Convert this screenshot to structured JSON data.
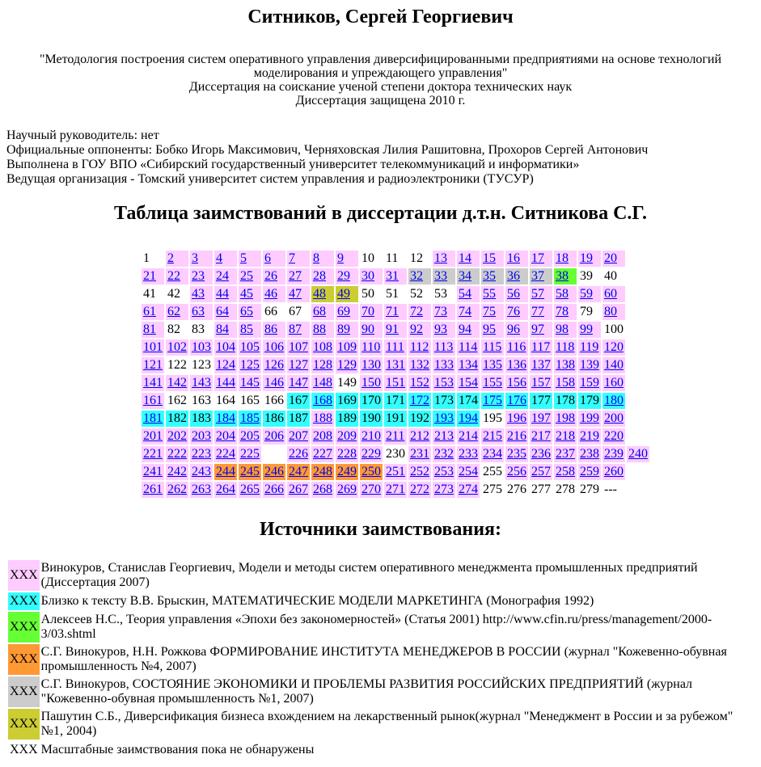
{
  "title": "Ситников, Сергей Георгиевич",
  "thesis": {
    "topic": "\"Методология построения систем оперативного управления диверсифицированными предприятиями на основе технологий моделирования и упреждающего управления\"",
    "degree": "Диссертация на соискание ученой степени доктора технических наук",
    "defended": "Диссертация защищена 2010 г."
  },
  "info": [
    "Научный руководитель: нет",
    "Официальные оппоненты: Бобко Игорь Максимович, Черняховская Лилия Рашитовна, Прохоров Сергей Антонович",
    "Выполнена в ГОУ ВПО «Сибирский государственный университет телекоммуникаций и информатики»",
    "Ведущая организация - Томский университет систем управления и радиоэлектроники (ТУСУР)"
  ],
  "table_title": "Таблица заимствований в диссертации д.т.н. Ситникова С.Г.",
  "colors": {
    "p": "#ffccff",
    "c": "#33ffff",
    "C": "#33ffff",
    "g": "#cccccc",
    "G": "#66ff33",
    "o": "#ff9933",
    "y": "#cccc33",
    "w": "#ffffff",
    "e": "#ffffff"
  },
  "linked_codes": [
    "p",
    "C",
    "g",
    "G",
    "o",
    "y"
  ],
  "rows": [
    "1:w 2:p 3:p 4:p 5:p 6:p 7:p 8:p 9:p 10:w 11:w 12:w 13:p 14:p 15:p 16:p 17:p 18:p 19:p 20:p",
    "21:p 22:p 23:p 24:p 25:p 26:p 27:p 28:p 29:p 30:p 31:p 32:g 33:g 34:g 35:g 36:g 37:g 38:G 39:w 40:w",
    "41:w 42:w 43:p 44:p 45:p 46:p 47:p 48:y 49:y 50:w 51:w 52:w 53:w 54:p 55:p 56:p 57:p 58:p 59:p 60:p",
    "61:p 62:p 63:p 64:p 65:p 66:w 67:w 68:p 69:p 70:p 71:p 72:p 73:p 74:p 75:p 76:p 77:p 78:p 79:w 80:p",
    "81:p 82:w 83:w 84:p 85:p 86:p 87:p 88:p 89:p 90:p 91:p 92:p 93:p 94:p 95:p 96:p 97:p 98:p 99:p 100:w",
    "101:p 102:p 103:p 104:p 105:p 106:p 107:p 108:p 109:p 110:p 111:p 112:p 113:p 114:p 115:p 116:p 117:p 118:p 119:p 120:p",
    "121:p 122:w 123:w 124:p 125:p 126:p 127:p 128:p 129:p 130:p 131:p 132:p 133:p 134:p 135:p 136:p 137:p 138:p 139:p 140:p",
    "141:p 142:p 143:p 144:p 145:p 146:p 147:p 148:p 149:w 150:p 151:p 152:p 153:p 154:p 155:p 156:p 157:p 158:p 159:p 160:p",
    "161:p 162:w 163:w 164:w 165:w 166:w 167:c 168:C 169:c 170:c 171:c 172:C 173:c 174:c 175:C 176:C 177:c 178:c 179:c 180:C",
    "181:C 182:c 183:c 184:C 185:C 186:c 187:c 188:p 189:c 190:c 191:c 192:c 193:C 194:C 195:w 196:p 197:p 198:p 199:p 200:p",
    "201:p 202:p 203:p 204:p 205:p 206:p 207:p 208:p 209:p 210:p 211:p 212:p 213:p 214:p 215:p 216:p 217:p 218:p 219:p 220:p",
    "221:p 222:p 223:p 224:p 225:p :e 226:p 227:p 228:p 229:p 230:w 231:p 232:p 233:p 234:p 235:p 236:p 237:p 238:p 239:p 240:p",
    "241:p 242:p 243:p 244:o 245:o 246:o 247:o 248:o 249:o 250:o 251:p 252:p 253:p 254:p 255:w 256:p 257:p 258:p 259:p 260:p",
    "261:p 262:p 263:p 264:p 265:p 266:p 267:p 268:p 269:p 270:p 271:p 272:p 273:p 274:p 275:w 276:w 277:w 278:w 279:w ---:w"
  ],
  "sources_title": "Источники заимствования:",
  "sources": [
    {
      "swatch": "XXX",
      "color": "#ffccff",
      "text": "Винокуров, Станислав Георгиевич, Модели и методы систем оперативного менеджмента промышленных предприятий (Диссертация 2007)"
    },
    {
      "swatch": "XXX",
      "color": "#33ffff",
      "text": "Близко к тексту В.В. Брыскин, МАТЕМАТИЧЕСКИЕ МОДЕЛИ МАРКЕТИНГА (Монография 1992)"
    },
    {
      "swatch": "XXX",
      "color": "#66ff33",
      "text": "Алексеев Н.С., Теория управления «Эпохи без закономерностей» (Статья 2001) http://www.cfin.ru/press/management/2000-3/03.shtml"
    },
    {
      "swatch": "XXX",
      "color": "#ff9933",
      "text": "С.Г. Винокуров, Н.Н. Рожкова ФОРМИРОВАНИЕ ИНСТИТУТА МЕНЕДЖЕРОВ В РОССИИ (журнал \"Кожевенно-обувная промышленность №4, 2007)"
    },
    {
      "swatch": "XXX",
      "color": "#cccccc",
      "text": "С.Г. Винокуров, СОСТОЯНИЕ ЭКОНОМИКИ И ПРОБЛЕМЫ РАЗВИТИЯ РОССИЙСКИХ ПРЕДПРИЯТИЙ (журнал \"Кожевенно-обувная промышленность №1, 2007)"
    },
    {
      "swatch": "XXX",
      "color": "#cccc33",
      "text": "Пашутин С.Б., Диверсификация бизнеса вхождением на лекарственный рынок(журнал \"Менеджмент в России и за рубежом\" №1, 2004)"
    },
    {
      "swatch": "XXX",
      "color": "#ffffff",
      "text": "Масштабные заимствования пока не обнаружены"
    }
  ]
}
